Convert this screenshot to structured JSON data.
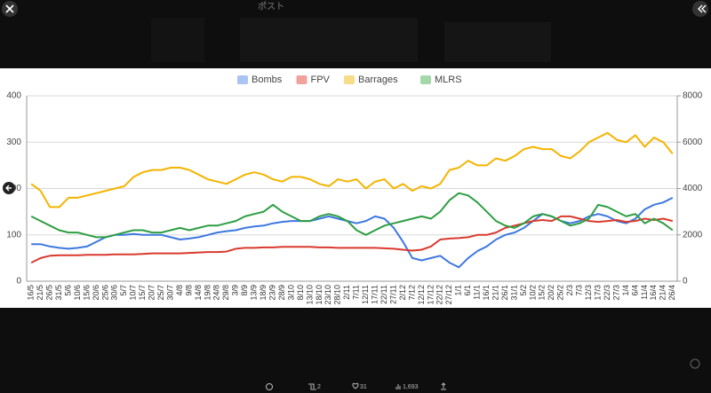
{
  "ui": {
    "header": "ポスト",
    "retweets": "2",
    "likes": "31",
    "views": "1,693"
  },
  "chart_data": {
    "type": "line",
    "categories": [
      "16/5",
      "21/5",
      "26/5",
      "31/5",
      "5/6",
      "10/6",
      "15/6",
      "20/6",
      "25/6",
      "30/6",
      "5/7",
      "10/7",
      "15/7",
      "20/7",
      "25/7",
      "30/7",
      "4/8",
      "9/8",
      "14/8",
      "19/8",
      "24/8",
      "29/8",
      "3/9",
      "8/9",
      "13/9",
      "18/9",
      "23/9",
      "28/9",
      "3/10",
      "8/10",
      "13/10",
      "18/10",
      "23/10",
      "28/10",
      "2/11",
      "7/11",
      "12/11",
      "17/11",
      "22/11",
      "27/11",
      "2/12",
      "7/12",
      "12/12",
      "17/12",
      "22/12",
      "27/12",
      "1/1",
      "6/1",
      "11/1",
      "16/1",
      "21/1",
      "26/1",
      "31/1",
      "5/2",
      "10/2",
      "15/2",
      "20/2",
      "25/2",
      "2/3",
      "7/3",
      "12/3",
      "17/3",
      "22/3",
      "27/3",
      "1/4",
      "6/4",
      "11/4",
      "16/4",
      "21/4",
      "26/4"
    ],
    "series": [
      {
        "name": "Bombs",
        "color": "#3d78e0",
        "legend_color": "#a9c4f0",
        "values": [
          80,
          80,
          75,
          72,
          70,
          72,
          75,
          85,
          95,
          100,
          100,
          102,
          100,
          100,
          100,
          95,
          90,
          92,
          95,
          100,
          105,
          108,
          110,
          115,
          118,
          120,
          125,
          128,
          130,
          130,
          130,
          135,
          140,
          135,
          130,
          125,
          130,
          140,
          135,
          115,
          85,
          50,
          45,
          50,
          55,
          40,
          30,
          50,
          65,
          75,
          90,
          100,
          105,
          115,
          130,
          145,
          140,
          130,
          125,
          130,
          140,
          145,
          140,
          130,
          125,
          135,
          155,
          165,
          170,
          180
        ]
      },
      {
        "name": "FPV",
        "color": "#d93a2e",
        "legend_color": "#f0a39c",
        "values": [
          40,
          50,
          55,
          56,
          56,
          56,
          57,
          57,
          57,
          58,
          58,
          58,
          59,
          60,
          60,
          60,
          60,
          61,
          62,
          63,
          63,
          64,
          70,
          72,
          72,
          73,
          73,
          74,
          74,
          74,
          74,
          73,
          73,
          72,
          72,
          72,
          72,
          72,
          71,
          70,
          68,
          66,
          68,
          75,
          90,
          92,
          93,
          95,
          100,
          100,
          105,
          115,
          120,
          125,
          130,
          132,
          130,
          140,
          140,
          135,
          130,
          128,
          130,
          132,
          128,
          130,
          135,
          132,
          135,
          130
        ]
      },
      {
        "name": "Barrages",
        "color": "#f4b400",
        "legend_color": "#f7dc8a",
        "values": [
          210,
          195,
          160,
          160,
          180,
          180,
          185,
          190,
          195,
          200,
          205,
          225,
          235,
          240,
          240,
          245,
          245,
          240,
          230,
          220,
          215,
          210,
          220,
          230,
          235,
          230,
          220,
          215,
          225,
          225,
          220,
          210,
          205,
          220,
          215,
          220,
          200,
          215,
          220,
          200,
          210,
          195,
          205,
          200,
          210,
          240,
          245,
          260,
          250,
          250,
          265,
          260,
          270,
          285,
          290,
          285,
          285,
          270,
          265,
          280,
          300,
          310,
          320,
          305,
          300,
          315,
          290,
          310,
          300,
          275
        ]
      },
      {
        "name": "MLRS",
        "color": "#2e9e44",
        "legend_color": "#a4d8a8",
        "values": [
          140,
          130,
          120,
          110,
          105,
          105,
          100,
          95,
          95,
          100,
          105,
          110,
          110,
          105,
          105,
          110,
          115,
          110,
          115,
          120,
          120,
          125,
          130,
          140,
          145,
          150,
          165,
          150,
          140,
          130,
          130,
          140,
          145,
          140,
          130,
          110,
          100,
          110,
          120,
          125,
          130,
          135,
          140,
          135,
          150,
          175,
          190,
          185,
          170,
          150,
          130,
          120,
          115,
          125,
          140,
          145,
          140,
          130,
          120,
          125,
          135,
          165,
          160,
          150,
          140,
          145,
          125,
          135,
          125,
          110
        ]
      }
    ],
    "ylim": [
      0,
      400
    ],
    "yticks": [
      0,
      100,
      200,
      300,
      400
    ],
    "y2lim": [
      0,
      8000
    ],
    "y2ticks": [
      0,
      2000,
      4000,
      6000,
      8000
    ],
    "grid": true,
    "legend": "top"
  }
}
